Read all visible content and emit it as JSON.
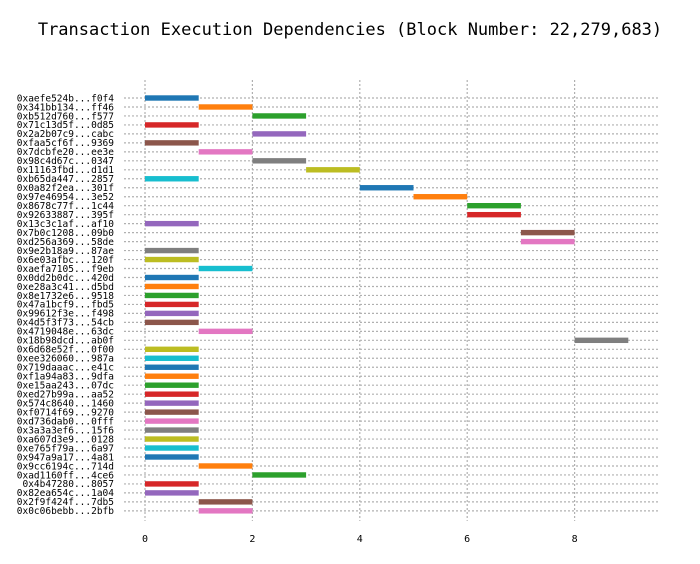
{
  "chart_data": {
    "type": "bar",
    "orientation": "horizontal-gantt",
    "title": "Transaction Execution Dependencies (Block Number: 22,279,683)",
    "xlabel": "",
    "ylabel": "",
    "xlim": [
      -0.4,
      9.6
    ],
    "xticks": [
      0,
      2,
      4,
      6,
      8
    ],
    "grid": true,
    "grid_style": "dotted",
    "tasks": [
      {
        "label": "0xaefe524b...f0f4",
        "start": 0,
        "end": 1,
        "color": "#1f77b4"
      },
      {
        "label": "0x341bb134...ff46",
        "start": 1,
        "end": 2,
        "color": "#ff7f0e"
      },
      {
        "label": "0xb512d760...f577",
        "start": 2,
        "end": 3,
        "color": "#2ca02c"
      },
      {
        "label": "0x71c13d5f...0d85",
        "start": 0,
        "end": 1,
        "color": "#d62728"
      },
      {
        "label": "0x2a2b07c9...cabc",
        "start": 2,
        "end": 3,
        "color": "#9467bd"
      },
      {
        "label": "0xfaa5cf6f...9369",
        "start": 0,
        "end": 1,
        "color": "#8c564b"
      },
      {
        "label": "0x7dcbfe20...ee3e",
        "start": 1,
        "end": 2,
        "color": "#e377c2"
      },
      {
        "label": "0x98c4d67c...0347",
        "start": 2,
        "end": 3,
        "color": "#7f7f7f"
      },
      {
        "label": "0x11163fbd...d1d1",
        "start": 3,
        "end": 4,
        "color": "#bcbd22"
      },
      {
        "label": "0xb65da447...2857",
        "start": 0,
        "end": 1,
        "color": "#17becf"
      },
      {
        "label": "0x0a82f2ea...301f",
        "start": 4,
        "end": 5,
        "color": "#1f77b4"
      },
      {
        "label": "0x97e46954...3e52",
        "start": 5,
        "end": 6,
        "color": "#ff7f0e"
      },
      {
        "label": "0x8678c77f...1c44",
        "start": 6,
        "end": 7,
        "color": "#2ca02c"
      },
      {
        "label": "0x92633887...395f",
        "start": 6,
        "end": 7,
        "color": "#d62728"
      },
      {
        "label": "0x13c3c1af...af10",
        "start": 0,
        "end": 1,
        "color": "#9467bd"
      },
      {
        "label": "0x7b0c1208...09b0",
        "start": 7,
        "end": 8,
        "color": "#8c564b"
      },
      {
        "label": "0xd256a369...58de",
        "start": 7,
        "end": 8,
        "color": "#e377c2"
      },
      {
        "label": "0x9e2b18a9...87ae",
        "start": 0,
        "end": 1,
        "color": "#7f7f7f"
      },
      {
        "label": "0x6e03afbc...120f",
        "start": 0,
        "end": 1,
        "color": "#bcbd22"
      },
      {
        "label": "0xaefa7105...f9eb",
        "start": 1,
        "end": 2,
        "color": "#17becf"
      },
      {
        "label": "0x0dd2b0dc...420d",
        "start": 0,
        "end": 1,
        "color": "#1f77b4"
      },
      {
        "label": "0xe28a3c41...d5bd",
        "start": 0,
        "end": 1,
        "color": "#ff7f0e"
      },
      {
        "label": "0x8e1732e6...9518",
        "start": 0,
        "end": 1,
        "color": "#2ca02c"
      },
      {
        "label": "0x47a1bcf9...fbd5",
        "start": 0,
        "end": 1,
        "color": "#d62728"
      },
      {
        "label": "0x99612f3e...f498",
        "start": 0,
        "end": 1,
        "color": "#9467bd"
      },
      {
        "label": "0x4d5f3f73...54cb",
        "start": 0,
        "end": 1,
        "color": "#8c564b"
      },
      {
        "label": "0x4719048e...63dc",
        "start": 1,
        "end": 2,
        "color": "#e377c2"
      },
      {
        "label": "0x18b98dcd...ab0f",
        "start": 8,
        "end": 9,
        "color": "#7f7f7f"
      },
      {
        "label": "0x6d68e52f...0f00",
        "start": 0,
        "end": 1,
        "color": "#bcbd22"
      },
      {
        "label": "0xee326060...987a",
        "start": 0,
        "end": 1,
        "color": "#17becf"
      },
      {
        "label": "0x719daaac...e41c",
        "start": 0,
        "end": 1,
        "color": "#1f77b4"
      },
      {
        "label": "0xf1a94a83...9dfa",
        "start": 0,
        "end": 1,
        "color": "#ff7f0e"
      },
      {
        "label": "0xe15aa243...07dc",
        "start": 0,
        "end": 1,
        "color": "#2ca02c"
      },
      {
        "label": "0xed27b99a...aa52",
        "start": 0,
        "end": 1,
        "color": "#d62728"
      },
      {
        "label": "0x574c8640...1460",
        "start": 0,
        "end": 1,
        "color": "#9467bd"
      },
      {
        "label": "0xf0714f69...9270",
        "start": 0,
        "end": 1,
        "color": "#8c564b"
      },
      {
        "label": "0xd736dab0...0fff",
        "start": 0,
        "end": 1,
        "color": "#e377c2"
      },
      {
        "label": "0x3a3a3ef6...15f6",
        "start": 0,
        "end": 1,
        "color": "#7f7f7f"
      },
      {
        "label": "0xa607d3e9...0128",
        "start": 0,
        "end": 1,
        "color": "#bcbd22"
      },
      {
        "label": "0xe765f79a...6a97",
        "start": 0,
        "end": 1,
        "color": "#17becf"
      },
      {
        "label": "0x947a9a17...4a81",
        "start": 0,
        "end": 1,
        "color": "#1f77b4"
      },
      {
        "label": "0x9cc6194c...714d",
        "start": 1,
        "end": 2,
        "color": "#ff7f0e"
      },
      {
        "label": "0xad1160ff...4ce6",
        "start": 2,
        "end": 3,
        "color": "#2ca02c"
      },
      {
        "label": "0x4b47280...8057",
        "start": 0,
        "end": 1,
        "color": "#d62728"
      },
      {
        "label": "0x82ea654c...1a04",
        "start": 0,
        "end": 1,
        "color": "#9467bd"
      },
      {
        "label": "0x2f9f424f...7db5",
        "start": 1,
        "end": 2,
        "color": "#8c564b"
      },
      {
        "label": "0x0c06bebb...2bfb",
        "start": 1,
        "end": 2,
        "color": "#e377c2"
      }
    ]
  }
}
